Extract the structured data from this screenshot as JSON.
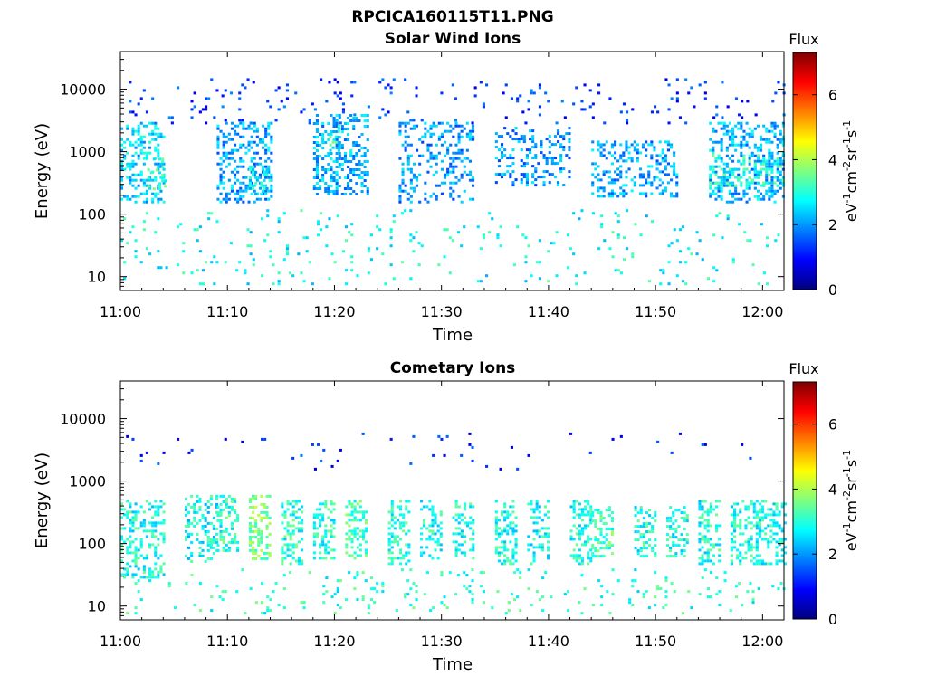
{
  "figure_title": "RPCICA160115T11.PNG",
  "colors": {
    "colormap": [
      "#00007f",
      "#0000ff",
      "#007fff",
      "#00ffff",
      "#7fff7f",
      "#ffff00",
      "#ff7f00",
      "#ff0000",
      "#7f0000"
    ],
    "axes": "#000000",
    "background": "#ffffff"
  },
  "chart_data": [
    {
      "type": "heatmap",
      "title": "Solar Wind Ions",
      "xlabel": "Time",
      "ylabel": "Energy (eV)",
      "x_ticks": [
        "11:00",
        "11:10",
        "11:20",
        "11:30",
        "11:40",
        "11:50",
        "12:00"
      ],
      "x_range_minutes": [
        0,
        62
      ],
      "y_scale": "log",
      "y_ticks": [
        "10",
        "100",
        "1000",
        "10000"
      ],
      "y_range_eV": [
        6,
        40000
      ],
      "colorbar": {
        "label": "Flux",
        "unit": "eV-1cm-2sr-1s-1",
        "ticks": [
          "0",
          "2",
          "4",
          "6"
        ],
        "range": [
          0,
          7.3
        ]
      },
      "grid": false,
      "patches": [
        {
          "t": [
            0,
            4
          ],
          "e": [
            150,
            3000
          ],
          "flux": 2.4,
          "density": 0.35
        },
        {
          "t": [
            2.5,
            4.2
          ],
          "e": [
            250,
            800
          ],
          "flux": 3.2,
          "density": 0.3
        },
        {
          "t": [
            9,
            14
          ],
          "e": [
            150,
            3000
          ],
          "flux": 2.1,
          "density": 0.3
        },
        {
          "t": [
            12,
            14
          ],
          "e": [
            200,
            600
          ],
          "flux": 2.6,
          "density": 0.35
        },
        {
          "t": [
            18,
            23
          ],
          "e": [
            200,
            4000
          ],
          "flux": 2.2,
          "density": 0.35
        },
        {
          "t": [
            19.5,
            20.5
          ],
          "e": [
            1000,
            3000
          ],
          "flux": 3.0,
          "density": 0.3
        },
        {
          "t": [
            26,
            33
          ],
          "e": [
            150,
            3000
          ],
          "flux": 2.0,
          "density": 0.28
        },
        {
          "t": [
            35,
            42
          ],
          "e": [
            300,
            2500
          ],
          "flux": 2.0,
          "density": 0.25
        },
        {
          "t": [
            44,
            52
          ],
          "e": [
            200,
            1500
          ],
          "flux": 2.1,
          "density": 0.3
        },
        {
          "t": [
            55,
            62
          ],
          "e": [
            150,
            3000
          ],
          "flux": 2.2,
          "density": 0.35
        },
        {
          "t": [
            55,
            62
          ],
          "e": [
            300,
            1000
          ],
          "flux": 3.0,
          "density": 0.25
        },
        {
          "t": [
            0,
            62
          ],
          "e": [
            8,
            120
          ],
          "flux": 2.8,
          "density": 0.04
        },
        {
          "t": [
            0,
            62
          ],
          "e": [
            3000,
            15000
          ],
          "flux": 1.3,
          "density": 0.04
        }
      ]
    },
    {
      "type": "heatmap",
      "title": "Cometary Ions",
      "xlabel": "Time",
      "ylabel": "Energy (eV)",
      "x_ticks": [
        "11:00",
        "11:10",
        "11:20",
        "11:30",
        "11:40",
        "11:50",
        "12:00"
      ],
      "x_range_minutes": [
        0,
        62
      ],
      "y_scale": "log",
      "y_ticks": [
        "10",
        "100",
        "1000",
        "10000"
      ],
      "y_range_eV": [
        6,
        40000
      ],
      "colorbar": {
        "label": "Flux",
        "unit": "eV-1cm-2sr-1s-1",
        "ticks": [
          "0",
          "2",
          "4",
          "6"
        ],
        "range": [
          0,
          7.3
        ]
      },
      "grid": false,
      "patches": [
        {
          "t": [
            0,
            4
          ],
          "e": [
            30,
            500
          ],
          "flux": 2.9,
          "density": 0.35
        },
        {
          "t": [
            6,
            9
          ],
          "e": [
            50,
            600
          ],
          "flux": 2.8,
          "density": 0.35
        },
        {
          "t": [
            9,
            11
          ],
          "e": [
            80,
            600
          ],
          "flux": 3.0,
          "density": 0.4
        },
        {
          "t": [
            12,
            14
          ],
          "e": [
            60,
            600
          ],
          "flux": 3.6,
          "density": 0.45
        },
        {
          "t": [
            15,
            17
          ],
          "e": [
            50,
            500
          ],
          "flux": 3.0,
          "density": 0.4
        },
        {
          "t": [
            18,
            20
          ],
          "e": [
            60,
            500
          ],
          "flux": 3.0,
          "density": 0.4
        },
        {
          "t": [
            21,
            23
          ],
          "e": [
            60,
            500
          ],
          "flux": 3.2,
          "density": 0.4
        },
        {
          "t": [
            25,
            27
          ],
          "e": [
            50,
            500
          ],
          "flux": 3.0,
          "density": 0.4
        },
        {
          "t": [
            28,
            30
          ],
          "e": [
            60,
            500
          ],
          "flux": 2.9,
          "density": 0.35
        },
        {
          "t": [
            31,
            33
          ],
          "e": [
            60,
            500
          ],
          "flux": 2.9,
          "density": 0.35
        },
        {
          "t": [
            35,
            37
          ],
          "e": [
            50,
            500
          ],
          "flux": 2.9,
          "density": 0.4
        },
        {
          "t": [
            38,
            40
          ],
          "e": [
            50,
            500
          ],
          "flux": 2.8,
          "density": 0.35
        },
        {
          "t": [
            42,
            44
          ],
          "e": [
            50,
            500
          ],
          "flux": 2.9,
          "density": 0.35
        },
        {
          "t": [
            44,
            46
          ],
          "e": [
            60,
            400
          ],
          "flux": 3.2,
          "density": 0.4
        },
        {
          "t": [
            48,
            50
          ],
          "e": [
            60,
            400
          ],
          "flux": 2.9,
          "density": 0.35
        },
        {
          "t": [
            51,
            53
          ],
          "e": [
            60,
            400
          ],
          "flux": 2.9,
          "density": 0.35
        },
        {
          "t": [
            54,
            56
          ],
          "e": [
            50,
            500
          ],
          "flux": 2.9,
          "density": 0.35
        },
        {
          "t": [
            57,
            62
          ],
          "e": [
            50,
            500
          ],
          "flux": 2.9,
          "density": 0.35
        },
        {
          "t": [
            0,
            62
          ],
          "e": [
            8,
            40
          ],
          "flux": 3.0,
          "density": 0.05
        },
        {
          "t": [
            0,
            62
          ],
          "e": [
            1500,
            6000
          ],
          "flux": 1.2,
          "density": 0.015
        }
      ]
    }
  ]
}
